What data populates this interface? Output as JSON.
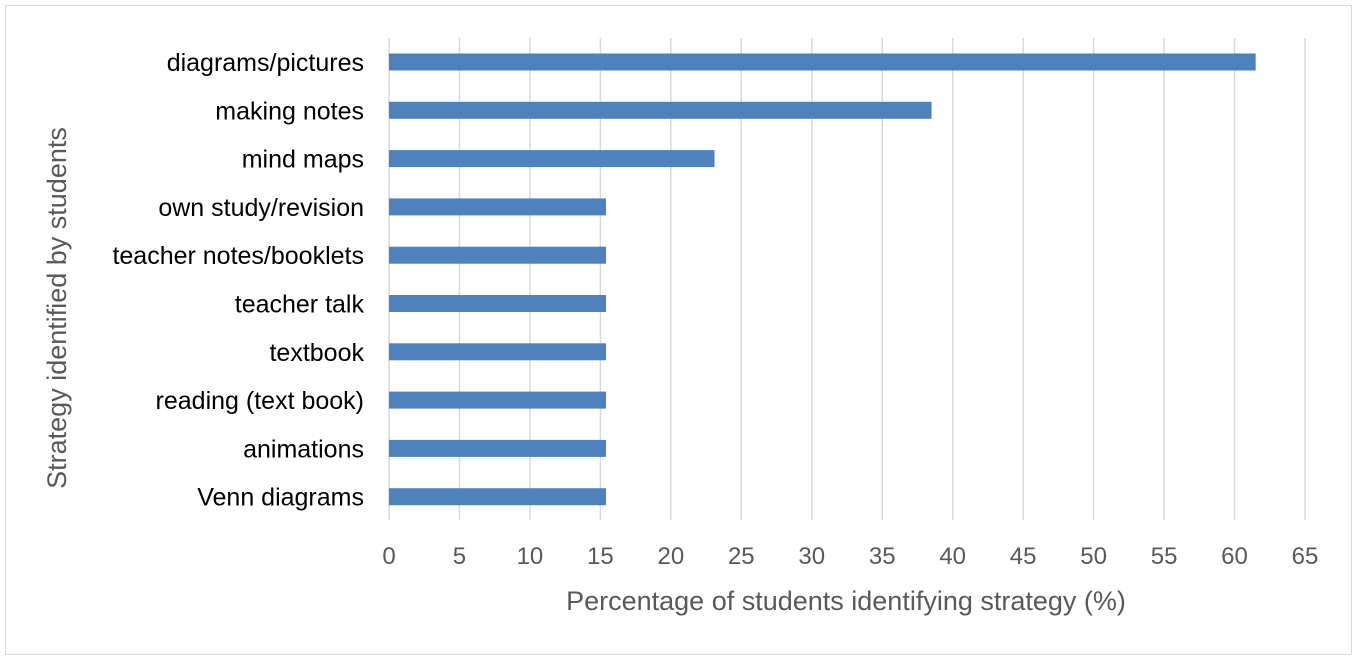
{
  "chart_data": {
    "type": "bar",
    "orientation": "horizontal",
    "categories": [
      "diagrams/pictures",
      "making notes",
      "mind maps",
      "own study/revision",
      "teacher notes/booklets",
      "teacher talk",
      "textbook",
      "reading (text book)",
      "animations",
      "Venn diagrams"
    ],
    "values": [
      61.5,
      38.5,
      23.1,
      15.4,
      15.4,
      15.4,
      15.4,
      15.4,
      15.4,
      15.4
    ],
    "xlabel": "Percentage of students identifying strategy (%)",
    "ylabel": "Strategy identified by students",
    "xlim": [
      0,
      65
    ],
    "xticks": [
      0,
      5,
      10,
      15,
      20,
      25,
      30,
      35,
      40,
      45,
      50,
      55,
      60,
      65
    ],
    "grid": true,
    "bar_color": "#4f81bd",
    "grid_color": "#d9d9d9"
  }
}
